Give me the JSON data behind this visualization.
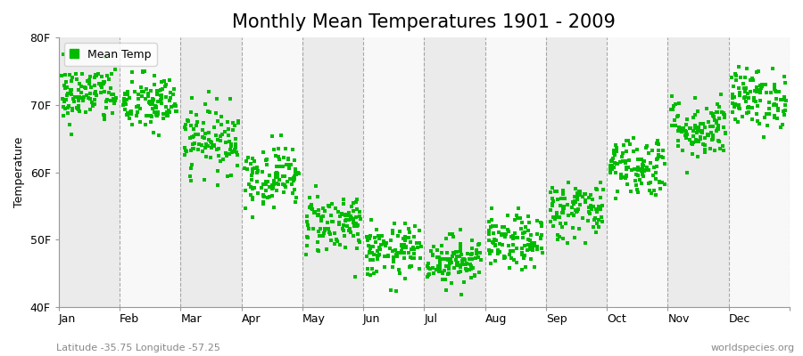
{
  "title": "Monthly Mean Temperatures 1901 - 2009",
  "ylabel": "Temperature",
  "xlabel": "",
  "ylim": [
    40,
    80
  ],
  "yticks": [
    40,
    50,
    60,
    70,
    80
  ],
  "ytick_labels": [
    "40F",
    "50F",
    "60F",
    "70F",
    "80F"
  ],
  "months": [
    "Jan",
    "Feb",
    "Mar",
    "Apr",
    "May",
    "Jun",
    "Jul",
    "Aug",
    "Sep",
    "Oct",
    "Nov",
    "Dec"
  ],
  "mean_temps_F": [
    71.5,
    70.2,
    65.0,
    59.5,
    52.5,
    48.2,
    47.0,
    49.5,
    54.5,
    61.0,
    66.5,
    71.0
  ],
  "std_temps": [
    2.2,
    2.2,
    2.5,
    2.3,
    2.3,
    2.0,
    1.8,
    2.0,
    2.2,
    2.3,
    2.3,
    2.2
  ],
  "n_years": 109,
  "marker_color": "#00BB00",
  "marker": "s",
  "marker_size": 2.5,
  "bg_color_odd": "#EBEBEB",
  "bg_color_even": "#F8F8F8",
  "grid_color": "#888888",
  "legend_label": "Mean Temp",
  "bottom_left_text": "Latitude -35.75 Longitude -57.25",
  "bottom_right_text": "worldspecies.org",
  "title_fontsize": 15,
  "axis_fontsize": 9,
  "legend_fontsize": 9,
  "annotation_fontsize": 8
}
